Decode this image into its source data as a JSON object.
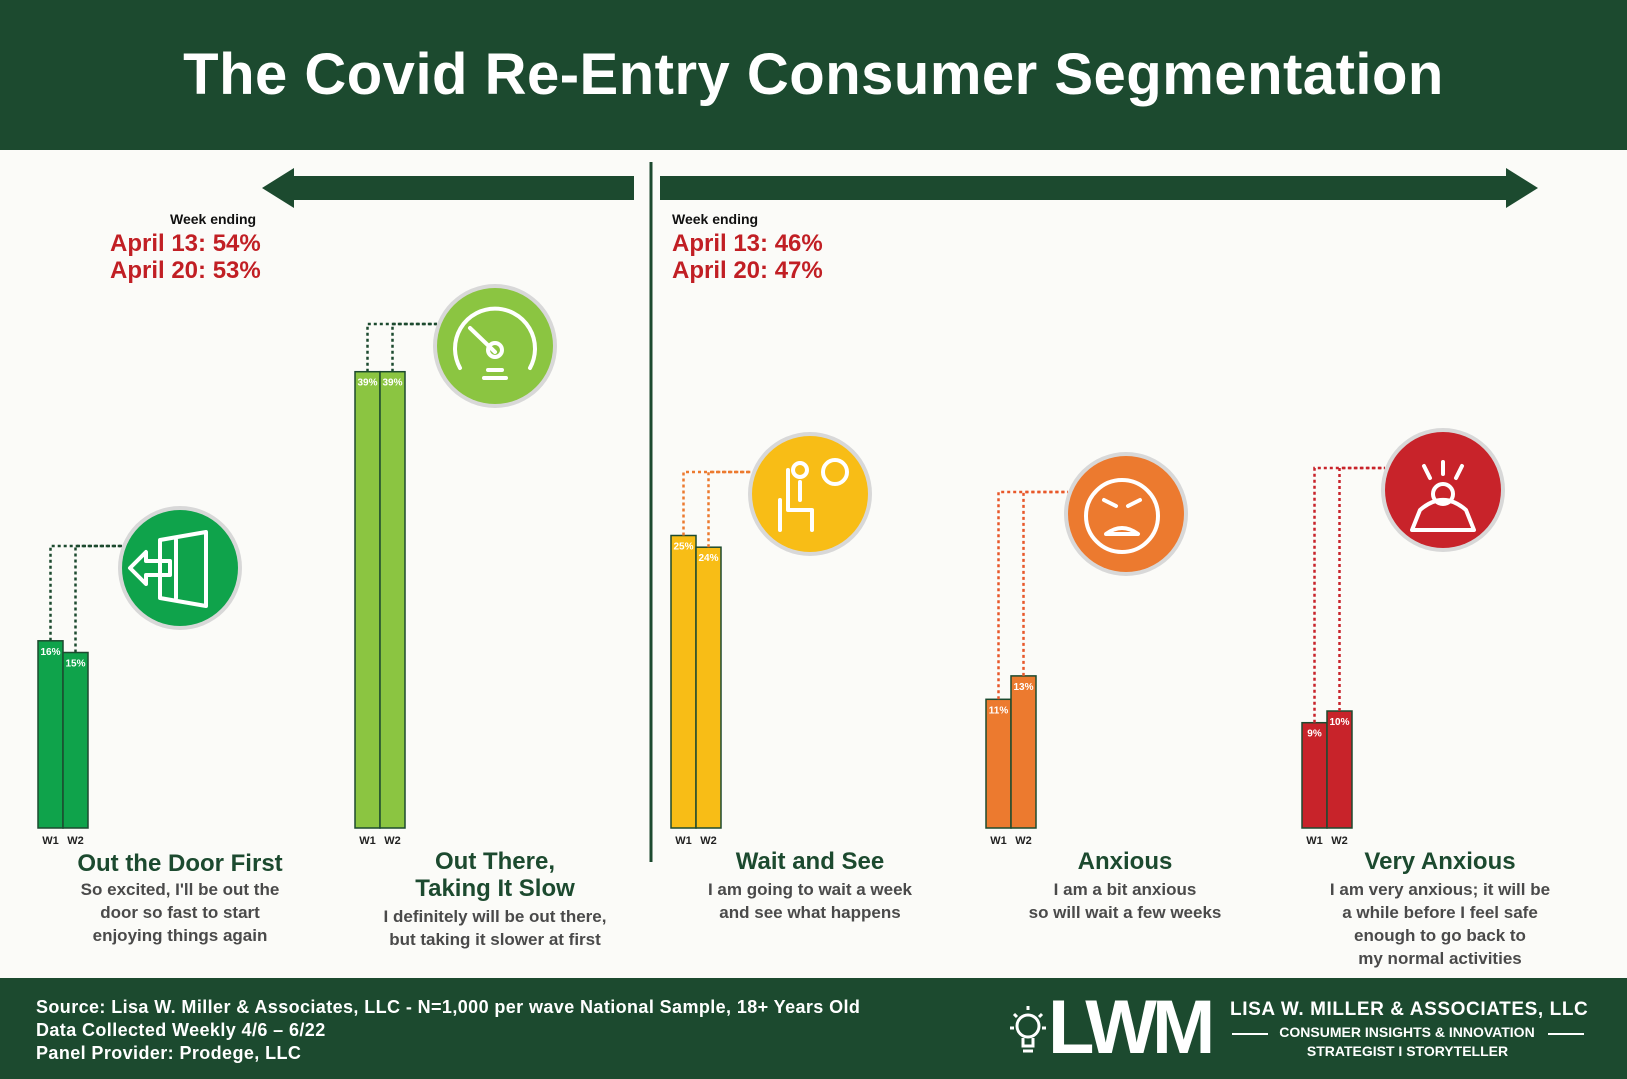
{
  "header": {
    "title": "The Covid Re-Entry Consumer Segmentation"
  },
  "groups": {
    "left": {
      "week_label": "Week ending",
      "lines": [
        "April 13: 54%",
        "April 20: 53%"
      ]
    },
    "right": {
      "week_label": "Week ending",
      "lines": [
        "April 13: 46%",
        "April 20: 47%"
      ]
    }
  },
  "segments": [
    {
      "title": [
        "Out the Door First"
      ],
      "desc": [
        "So excited, I'll be out the",
        "door so fast to start",
        "enjoying things again"
      ],
      "icon": "exit-door-icon"
    },
    {
      "title": [
        "Out There,",
        "Taking It Slow"
      ],
      "desc": [
        "I definitely will be out there,",
        "but taking it slower at first"
      ],
      "icon": "speedometer-icon"
    },
    {
      "title": [
        "Wait and See"
      ],
      "desc": [
        "I am going to wait a week",
        "and see what happens"
      ],
      "icon": "waiting-person-clock-icon"
    },
    {
      "title": [
        "Anxious"
      ],
      "desc": [
        "I am a bit anxious",
        "so will wait a few weeks"
      ],
      "icon": "anxious-face-icon"
    },
    {
      "title": [
        "Very Anxious"
      ],
      "desc": [
        "I am very anxious; it will be",
        "a while before I feel safe",
        "enough to go back to",
        "my normal activities"
      ],
      "icon": "stressed-person-icon"
    }
  ],
  "chart_data": {
    "type": "bar",
    "categories": [
      "Out the Door First",
      "Out There, Taking It Slow",
      "Wait and See",
      "Anxious",
      "Very Anxious"
    ],
    "series": [
      {
        "name": "W1",
        "values": [
          16,
          39,
          25,
          11,
          9
        ]
      },
      {
        "name": "W2",
        "values": [
          15,
          39,
          24,
          13,
          10
        ]
      }
    ],
    "value_labels": [
      [
        "16%",
        "15%"
      ],
      [
        "39%",
        "39%"
      ],
      [
        "25%",
        "24%"
      ],
      [
        "11%",
        "13%"
      ],
      [
        "9%",
        "10%"
      ]
    ],
    "colors": [
      "#0fa34b",
      "#8bc541",
      "#f8bd16",
      "#ec7a2f",
      "#c8232a"
    ],
    "ylim": [
      0,
      40
    ],
    "grid": false
  },
  "footer": {
    "source_lines": [
      "Source: Lisa W. Miller & Associates, LLC - N=1,000 per wave National Sample, 18+ Years Old",
      "Data Collected Weekly 4/6 – 6/22",
      "Panel Provider: Prodege, LLC"
    ],
    "logo_text": "LWM",
    "company_name": "LISA W. MILLER & ASSOCIATES, LLC",
    "tagline_1": "CONSUMER INSIGHTS & INNOVATION",
    "tagline_2": "STRATEGIST I STORYTELLER"
  }
}
